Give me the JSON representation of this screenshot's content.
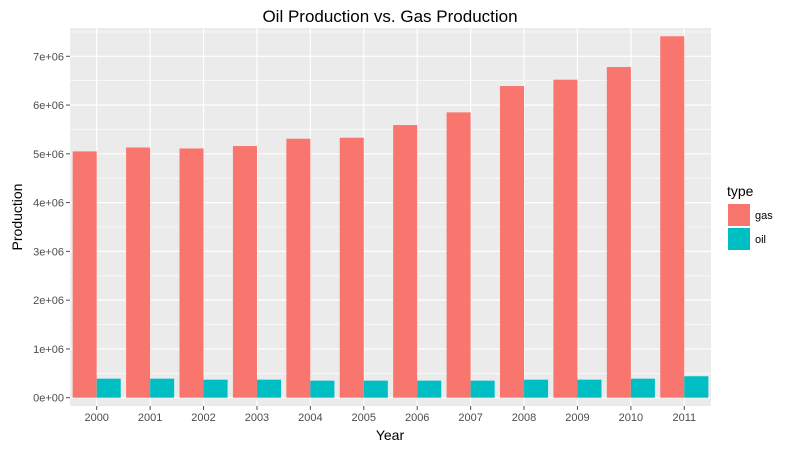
{
  "chart_data": {
    "type": "bar",
    "title": "Oil Production vs. Gas Production",
    "xlabel": "Year",
    "ylabel": "Production",
    "categories": [
      "2000",
      "2001",
      "2002",
      "2003",
      "2004",
      "2005",
      "2006",
      "2007",
      "2008",
      "2009",
      "2010",
      "2011"
    ],
    "series": [
      {
        "name": "gas",
        "color": "#F8766D",
        "values": [
          5050000,
          5130000,
          5110000,
          5160000,
          5310000,
          5330000,
          5590000,
          5850000,
          6390000,
          6520000,
          6780000,
          7410000
        ]
      },
      {
        "name": "oil",
        "color": "#00BFC4",
        "values": [
          390000,
          390000,
          370000,
          370000,
          350000,
          350000,
          350000,
          350000,
          370000,
          370000,
          390000,
          440000
        ]
      }
    ],
    "ylim": [
      -170000,
      7580000
    ],
    "yticks": [
      0,
      1000000,
      2000000,
      3000000,
      4000000,
      5000000,
      6000000,
      7000000
    ],
    "ytick_labels": [
      "0e+00",
      "1e+06",
      "2e+06",
      "3e+06",
      "4e+06",
      "5e+06",
      "6e+06",
      "7e+06"
    ],
    "grid": true,
    "legend": {
      "title": "type",
      "position": "right",
      "entries": [
        "gas",
        "oil"
      ]
    },
    "colors": {
      "panel": "#EBEBEB",
      "grid": "#FFFFFF",
      "tick": "#4D4D4D"
    }
  }
}
